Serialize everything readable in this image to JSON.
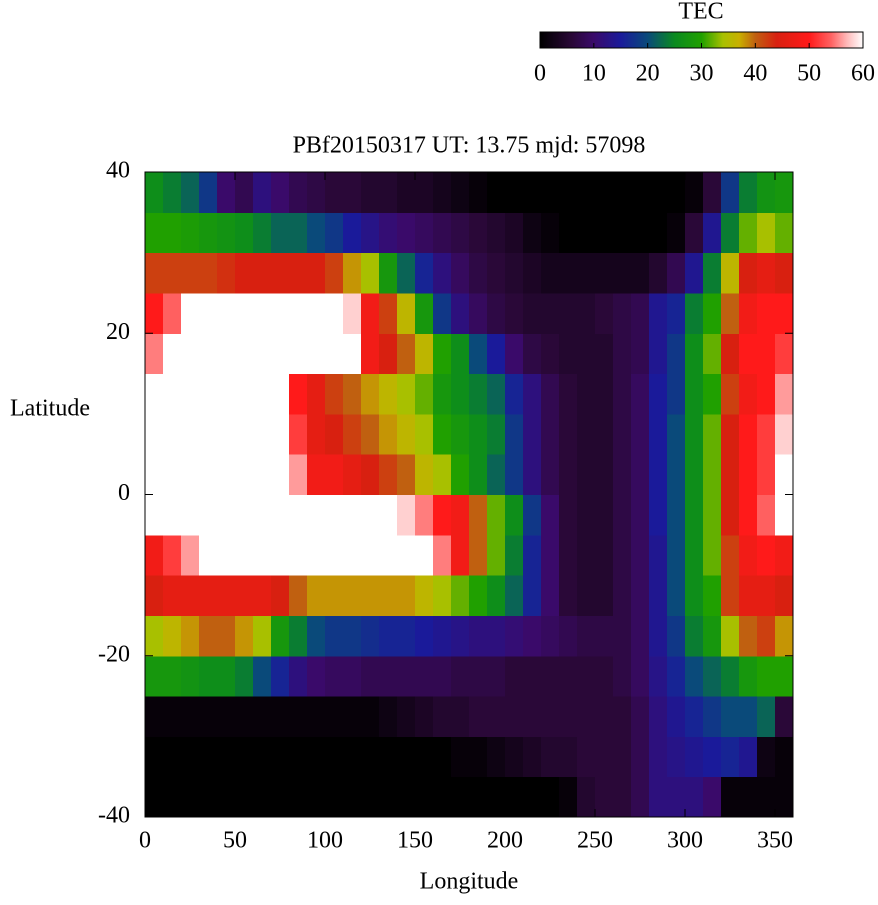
{
  "chart_data": {
    "type": "heatmap",
    "title": "PBf20150317  UT: 13.75  mjd: 57098",
    "x_label": "Longitude",
    "y_label": "Latitude",
    "colorbar_title": "TEC",
    "xlim": [
      0,
      360
    ],
    "ylim": [
      -40,
      40
    ],
    "xticks": [
      0,
      50,
      100,
      150,
      200,
      250,
      300,
      350
    ],
    "yticks": [
      -40,
      -20,
      0,
      20,
      40
    ],
    "zlim": [
      0,
      60
    ],
    "zticks": [
      0,
      10,
      20,
      30,
      40,
      50,
      60
    ],
    "colorscale": [
      [
        0,
        "#000000"
      ],
      [
        6,
        "#2a0838"
      ],
      [
        10,
        "#3a0a6a"
      ],
      [
        15,
        "#1a1a9a"
      ],
      [
        20,
        "#0a4a7a"
      ],
      [
        25,
        "#0a8a20"
      ],
      [
        30,
        "#20a000"
      ],
      [
        34,
        "#a8c000"
      ],
      [
        37,
        "#c8b000"
      ],
      [
        40,
        "#c06010"
      ],
      [
        44,
        "#d82010"
      ],
      [
        50,
        "#ff1a1a"
      ],
      [
        54,
        "#ff6060"
      ],
      [
        57,
        "#ffb8b8"
      ],
      [
        60,
        "#ffffff"
      ]
    ],
    "x": [
      5,
      15,
      25,
      35,
      45,
      55,
      65,
      75,
      85,
      95,
      105,
      115,
      125,
      135,
      145,
      155,
      165,
      175,
      185,
      195,
      205,
      215,
      225,
      235,
      245,
      255,
      265,
      275,
      285,
      295,
      305,
      315,
      325,
      335,
      345,
      355
    ],
    "y": [
      -37.5,
      -32.5,
      -27.5,
      -22.5,
      -17.5,
      -12.5,
      -7.5,
      -2.5,
      2.5,
      7.5,
      12.5,
      17.5,
      22.5,
      27.5,
      32.5,
      37.5
    ],
    "values": [
      [
        0,
        0,
        0,
        0,
        0,
        0,
        0,
        0,
        0,
        0,
        0,
        0,
        0,
        0,
        0,
        0,
        0,
        0,
        0,
        0,
        0,
        0,
        0,
        1,
        5,
        6,
        6,
        8,
        12,
        12,
        12,
        10,
        1,
        1,
        1,
        1
      ],
      [
        0,
        0,
        0,
        0,
        0,
        0,
        0,
        0,
        0,
        0,
        0,
        0,
        0,
        0,
        0,
        0,
        0,
        1,
        1,
        2,
        3,
        4,
        5,
        5,
        6,
        6,
        6,
        8,
        12,
        13,
        14,
        15,
        16,
        14,
        2,
        1
      ],
      [
        1,
        1,
        1,
        1,
        1,
        1,
        1,
        1,
        1,
        1,
        1,
        1,
        1,
        2,
        3,
        4,
        5,
        5,
        6,
        6,
        6,
        6,
        6,
        6,
        6,
        6,
        6,
        8,
        12,
        14,
        16,
        18,
        20,
        20,
        22,
        6
      ],
      [
        28,
        28,
        27,
        26,
        26,
        24,
        20,
        16,
        12,
        10,
        9,
        9,
        8,
        8,
        8,
        8,
        8,
        7,
        7,
        7,
        6,
        6,
        6,
        6,
        6,
        6,
        7,
        9,
        13,
        16,
        20,
        22,
        24,
        28,
        30,
        30
      ],
      [
        34,
        36,
        38,
        40,
        40,
        38,
        34,
        28,
        24,
        20,
        18,
        18,
        17,
        16,
        16,
        15,
        14,
        13,
        12,
        12,
        11,
        10,
        9,
        8,
        7,
        7,
        7,
        9,
        14,
        18,
        24,
        28,
        34,
        40,
        42,
        38
      ],
      [
        44,
        46,
        46,
        46,
        46,
        46,
        46,
        44,
        40,
        38,
        38,
        38,
        38,
        38,
        38,
        36,
        34,
        32,
        30,
        26,
        22,
        16,
        10,
        6,
        5,
        5,
        7,
        9,
        14,
        20,
        26,
        30,
        42,
        46,
        46,
        44
      ],
      [
        48,
        52,
        56,
        60,
        60,
        60,
        60,
        60,
        60,
        60,
        60,
        60,
        60,
        60,
        60,
        60,
        55,
        48,
        40,
        32,
        24,
        16,
        10,
        6,
        5,
        5,
        7,
        9,
        14,
        20,
        26,
        32,
        42,
        48,
        50,
        48
      ],
      [
        60,
        60,
        60,
        60,
        60,
        60,
        60,
        60,
        60,
        60,
        60,
        60,
        60,
        60,
        58,
        55,
        50,
        48,
        40,
        32,
        26,
        18,
        10,
        6,
        5,
        5,
        7,
        9,
        15,
        20,
        26,
        32,
        44,
        50,
        54,
        60
      ],
      [
        60,
        60,
        60,
        60,
        60,
        60,
        60,
        60,
        56,
        48,
        48,
        46,
        44,
        42,
        40,
        36,
        34,
        30,
        26,
        22,
        18,
        12,
        8,
        6,
        5,
        5,
        7,
        9,
        15,
        20,
        26,
        32,
        44,
        50,
        52,
        60
      ],
      [
        60,
        60,
        60,
        60,
        60,
        60,
        60,
        60,
        52,
        46,
        44,
        42,
        40,
        38,
        36,
        34,
        30,
        28,
        26,
        24,
        18,
        12,
        8,
        6,
        5,
        5,
        7,
        9,
        15,
        20,
        26,
        32,
        44,
        50,
        52,
        58
      ],
      [
        60,
        60,
        60,
        60,
        60,
        60,
        60,
        60,
        50,
        46,
        42,
        40,
        38,
        36,
        34,
        32,
        28,
        26,
        24,
        22,
        16,
        12,
        8,
        6,
        5,
        5,
        7,
        9,
        15,
        18,
        26,
        30,
        42,
        48,
        50,
        56
      ],
      [
        55,
        60,
        60,
        60,
        60,
        60,
        60,
        60,
        60,
        60,
        60,
        60,
        48,
        44,
        40,
        36,
        30,
        26,
        20,
        15,
        10,
        7,
        6,
        5,
        5,
        5,
        7,
        8,
        14,
        18,
        26,
        32,
        44,
        50,
        50,
        52
      ],
      [
        50,
        54,
        60,
        60,
        60,
        60,
        60,
        60,
        60,
        60,
        60,
        58,
        48,
        42,
        36,
        28,
        18,
        12,
        9,
        7,
        6,
        5,
        5,
        5,
        5,
        6,
        7,
        8,
        14,
        16,
        24,
        30,
        40,
        48,
        50,
        50
      ],
      [
        42,
        42,
        42,
        42,
        43,
        44,
        44,
        44,
        44,
        44,
        42,
        38,
        34,
        28,
        22,
        16,
        12,
        9,
        7,
        6,
        5,
        4,
        3,
        3,
        3,
        3,
        3,
        3,
        5,
        8,
        14,
        24,
        36,
        44,
        46,
        44
      ],
      [
        30,
        30,
        29,
        28,
        27,
        26,
        24,
        22,
        22,
        20,
        18,
        15,
        13,
        11,
        10,
        9,
        8,
        7,
        6,
        5,
        4,
        2,
        1,
        0,
        0,
        0,
        0,
        0,
        0,
        1,
        6,
        14,
        24,
        32,
        34,
        32
      ],
      [
        26,
        24,
        22,
        18,
        10,
        8,
        12,
        10,
        8,
        7,
        6,
        6,
        5,
        5,
        4,
        4,
        3,
        2,
        1,
        0,
        0,
        0,
        0,
        0,
        0,
        0,
        0,
        0,
        0,
        0,
        1,
        6,
        18,
        24,
        27,
        28
      ]
    ]
  }
}
